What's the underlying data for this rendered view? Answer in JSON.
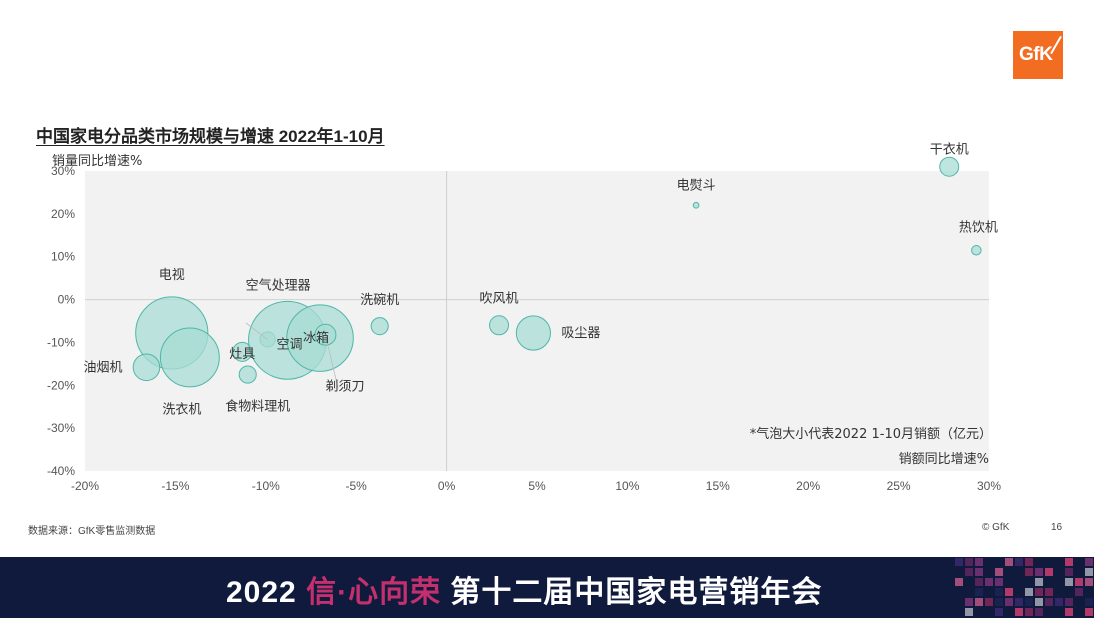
{
  "logo": {
    "text": "GfK",
    "color": "#f26d21"
  },
  "title": "中国家电分品类市场规模与增速 2022年1-10月",
  "chart_data": {
    "type": "scatter",
    "bubble": true,
    "ylabel": "销量同比增速%",
    "xlabel": "销额同比增速%",
    "note": "*气泡大小代表2022 1-10月销额（亿元）",
    "xlim": [
      -20,
      30
    ],
    "ylim": [
      -40,
      30
    ],
    "xticks": [
      -20,
      -15,
      -10,
      -5,
      0,
      5,
      10,
      15,
      20,
      25,
      30
    ],
    "yticks": [
      -40,
      -30,
      -20,
      -10,
      0,
      10,
      20,
      30
    ],
    "xtick_labels": [
      "-20%",
      "-15%",
      "-10%",
      "-5%",
      "0%",
      "5%",
      "10%",
      "15%",
      "20%",
      "25%",
      "30%"
    ],
    "ytick_labels": [
      "-40%",
      "-30%",
      "-20%",
      "-10%",
      "0%",
      "10%",
      "20%",
      "30%"
    ],
    "points": [
      {
        "label": "电视",
        "x": -15.2,
        "y": -7.8,
        "size": 38
      },
      {
        "label": "洗衣机",
        "x": -14.2,
        "y": -13.5,
        "size": 31
      },
      {
        "label": "油烟机",
        "x": -16.6,
        "y": -15.8,
        "size": 14
      },
      {
        "label": "灶具",
        "x": -11.3,
        "y": -12.2,
        "size": 10
      },
      {
        "label": "食物料理机",
        "x": -11.0,
        "y": -17.5,
        "size": 9
      },
      {
        "label": "空气处理器",
        "x": -9.9,
        "y": -9.3,
        "size": 8
      },
      {
        "label": "空调",
        "x": -8.8,
        "y": -9.5,
        "size": 41
      },
      {
        "label": "冰箱",
        "x": -7.0,
        "y": -9.0,
        "size": 35
      },
      {
        "label": "剃须刀",
        "x": -6.7,
        "y": -8.2,
        "size": 11
      },
      {
        "label": "洗碗机",
        "x": -3.7,
        "y": -6.2,
        "size": 9
      },
      {
        "label": "吹风机",
        "x": 2.9,
        "y": -6.0,
        "size": 10
      },
      {
        "label": "吸尘器",
        "x": 4.8,
        "y": -7.8,
        "size": 18
      },
      {
        "label": "电熨斗",
        "x": 13.8,
        "y": 22.0,
        "size": 3
      },
      {
        "label": "干衣机",
        "x": 27.8,
        "y": 31.0,
        "size": 10
      },
      {
        "label": "热饮机",
        "x": 29.3,
        "y": 11.5,
        "size": 5
      }
    ]
  },
  "footer": {
    "source": "数据来源：GfK零售监测数据",
    "copyright": "© GfK",
    "page": "16"
  },
  "banner": {
    "year": "2022 ",
    "part1": "信·心向荣",
    "part2": " 第十二届中国家电营销年会",
    "bg": "#0f1a3d"
  },
  "colors": {
    "bubble_fill": "#a8dcd4",
    "bubble_stroke": "#4fb7a8",
    "plot_bg": "#f2f2f2"
  }
}
